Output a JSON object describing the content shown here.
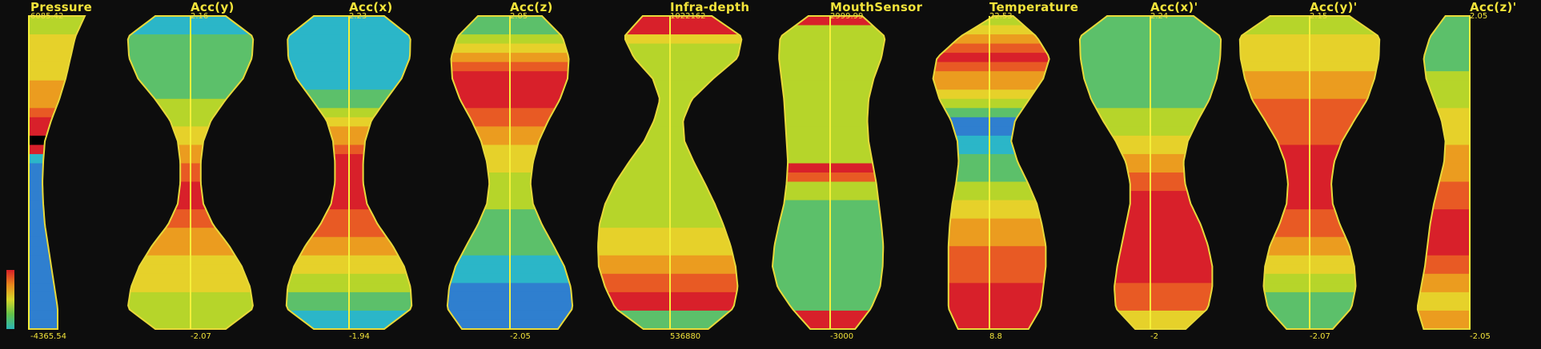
{
  "chart_data": {
    "type": "violin",
    "grid": false,
    "legend": "color scale bar at bottom-left",
    "colors": {
      "background": "#0d0d0d",
      "label": "#f2e33a",
      "outline": "#e8d93a",
      "median_line": "#f5f03a",
      "scale": [
        "#2f7fcf",
        "#2bb6c8",
        "#5cc06a",
        "#b6d52a",
        "#e6d12a",
        "#eb9c1f",
        "#e85a24",
        "#d8202a"
      ]
    },
    "series": [
      {
        "name": "Pressure",
        "max": "6085.42",
        "min": "-4365.54",
        "shape": "half",
        "half_widths": [
          70,
          58,
          52,
          46,
          38,
          28,
          20,
          18,
          17,
          18,
          20,
          24,
          28,
          32,
          36,
          36
        ],
        "stripes": [
          3,
          3,
          4,
          4,
          4,
          4,
          4,
          5,
          5,
          5,
          6,
          7,
          7,
          8,
          7,
          1,
          0,
          0,
          0,
          0,
          0,
          0,
          0,
          0,
          0,
          0,
          0,
          0,
          0,
          0,
          0,
          0,
          0,
          0
        ]
      },
      {
        "name": "Acc(y)",
        "max": "2.16",
        "min": "-2.07",
        "shape": "full",
        "half_widths": [
          0.55,
          0.98,
          0.96,
          0.82,
          0.55,
          0.32,
          0.2,
          0.16,
          0.16,
          0.2,
          0.35,
          0.6,
          0.8,
          0.93,
          0.98,
          0.55
        ],
        "stripes": [
          1,
          1,
          2,
          2,
          2,
          2,
          2,
          2,
          2,
          3,
          3,
          3,
          4,
          4,
          5,
          5,
          6,
          6,
          7,
          7,
          7,
          6,
          6,
          5,
          5,
          5,
          4,
          4,
          4,
          4,
          3,
          3,
          3,
          3
        ]
      },
      {
        "name": "Acc(x)",
        "max": "2.23",
        "min": "-1.94",
        "shape": "full",
        "half_widths": [
          0.55,
          0.96,
          0.95,
          0.82,
          0.58,
          0.35,
          0.25,
          0.22,
          0.22,
          0.28,
          0.45,
          0.68,
          0.86,
          0.96,
          0.98,
          0.55
        ],
        "stripes": [
          1,
          1,
          1,
          1,
          1,
          1,
          1,
          1,
          2,
          2,
          3,
          4,
          5,
          5,
          6,
          7,
          7,
          7,
          7,
          7,
          7,
          6,
          6,
          6,
          5,
          5,
          4,
          4,
          3,
          3,
          2,
          2,
          1,
          1
        ]
      },
      {
        "name": "Acc(z)",
        "max": "2.05",
        "min": "-2.05",
        "shape": "full",
        "half_widths": [
          0.5,
          0.82,
          0.92,
          0.9,
          0.78,
          0.6,
          0.45,
          0.36,
          0.32,
          0.36,
          0.5,
          0.68,
          0.85,
          0.95,
          0.98,
          0.75
        ],
        "stripes": [
          2,
          2,
          3,
          4,
          5,
          6,
          7,
          7,
          7,
          7,
          6,
          6,
          5,
          5,
          4,
          4,
          4,
          3,
          3,
          3,
          3,
          2,
          2,
          2,
          2,
          2,
          1,
          1,
          1,
          0,
          0,
          0,
          0,
          0
        ]
      },
      {
        "name": "Infra-depth",
        "max": "1022162",
        "min": "536880",
        "shape": "full",
        "half_widths": [
          0.48,
          0.82,
          0.72,
          0.42,
          0.22,
          0.2,
          0.28,
          0.45,
          0.62,
          0.76,
          0.86,
          0.92,
          0.95,
          0.92,
          0.82,
          0.45
        ],
        "center_shift": [
          0.1,
          0.18,
          0.22,
          0.18,
          0.08,
          -0.02,
          -0.08,
          -0.12,
          -0.14,
          -0.14,
          -0.12,
          -0.08,
          -0.04,
          0.02,
          0.06,
          0.08
        ],
        "stripes": [
          7,
          7,
          4,
          3,
          3,
          3,
          3,
          3,
          3,
          3,
          3,
          3,
          3,
          3,
          3,
          3,
          3,
          3,
          3,
          3,
          3,
          3,
          3,
          4,
          4,
          4,
          5,
          5,
          6,
          6,
          7,
          7,
          2,
          2
        ]
      },
      {
        "name": "MouthSensor",
        "max": "2999.99",
        "min": "-3000",
        "shape": "full",
        "half_widths": [
          0.42,
          0.82,
          0.8,
          0.72,
          0.66,
          0.64,
          0.64,
          0.66,
          0.7,
          0.74,
          0.8,
          0.85,
          0.86,
          0.8,
          0.62,
          0.35
        ],
        "center_shift": [
          0.08,
          0.04,
          0.0,
          -0.04,
          -0.06,
          -0.06,
          -0.04,
          0.0,
          0.02,
          0.02,
          0.0,
          -0.02,
          -0.04,
          -0.02,
          0.02,
          0.04
        ],
        "stripes": [
          7,
          3,
          3,
          3,
          3,
          3,
          3,
          3,
          3,
          3,
          3,
          3,
          3,
          3,
          3,
          3,
          7,
          6,
          3,
          3,
          2,
          2,
          2,
          2,
          2,
          2,
          2,
          2,
          2,
          2,
          2,
          2,
          7,
          7
        ]
      },
      {
        "name": "Temperature",
        "max": "22.53",
        "min": "8.8",
        "shape": "full",
        "half_widths": [
          0.15,
          0.6,
          0.88,
          0.86,
          0.7,
          0.5,
          0.42,
          0.46,
          0.56,
          0.66,
          0.72,
          0.76,
          0.76,
          0.74,
          0.72,
          0.55
        ],
        "center_shift": [
          0.22,
          0.14,
          0.06,
          -0.02,
          -0.08,
          -0.1,
          -0.08,
          -0.02,
          0.04,
          0.08,
          0.1,
          0.12,
          0.12,
          0.1,
          0.08,
          0.06
        ],
        "stripes": [
          3,
          4,
          5,
          6,
          7,
          6,
          5,
          5,
          4,
          3,
          2,
          0,
          0,
          1,
          1,
          2,
          2,
          2,
          3,
          3,
          4,
          4,
          5,
          5,
          5,
          6,
          6,
          6,
          6,
          7,
          7,
          7,
          7,
          7
        ]
      },
      {
        "name": "Acc(x)'",
        "max": "2.24",
        "min": "-2",
        "shape": "full",
        "half_widths": [
          0.6,
          0.98,
          0.97,
          0.92,
          0.82,
          0.66,
          0.5,
          0.4,
          0.38,
          0.42,
          0.52,
          0.6,
          0.66,
          0.68,
          0.64,
          0.35
        ],
        "center_shift": [
          0.0,
          0.0,
          0.0,
          0.0,
          0.0,
          0.0,
          0.02,
          0.06,
          0.1,
          0.14,
          0.18,
          0.2,
          0.2,
          0.18,
          0.16,
          0.14
        ],
        "stripes": [
          2,
          2,
          2,
          2,
          2,
          2,
          2,
          2,
          2,
          2,
          3,
          3,
          3,
          4,
          4,
          5,
          5,
          6,
          6,
          7,
          7,
          7,
          7,
          7,
          7,
          7,
          7,
          7,
          7,
          6,
          6,
          6,
          4,
          4
        ]
      },
      {
        "name": "Acc(y)'",
        "max": "2.15",
        "min": "-2.07",
        "shape": "full",
        "half_widths": [
          0.55,
          0.97,
          0.96,
          0.9,
          0.8,
          0.62,
          0.45,
          0.34,
          0.3,
          0.32,
          0.42,
          0.55,
          0.62,
          0.64,
          0.58,
          0.32
        ],
        "stripes": [
          3,
          3,
          4,
          4,
          4,
          4,
          5,
          5,
          5,
          6,
          6,
          6,
          6,
          6,
          7,
          7,
          7,
          7,
          7,
          7,
          7,
          6,
          6,
          6,
          5,
          5,
          4,
          4,
          3,
          3,
          2,
          2,
          2,
          2
        ]
      },
      {
        "name": "Acc(z)'",
        "max": "2.05",
        "min": "-2.05",
        "shape": "half",
        "half_widths": [
          0.38,
          0.62,
          0.72,
          0.68,
          0.56,
          0.44,
          0.38,
          0.4,
          0.48,
          0.56,
          0.62,
          0.66,
          0.7,
          0.76,
          0.82,
          0.72
        ],
        "stripes": [
          2,
          2,
          2,
          2,
          2,
          2,
          3,
          3,
          3,
          3,
          4,
          4,
          4,
          4,
          5,
          5,
          5,
          5,
          6,
          6,
          6,
          7,
          7,
          7,
          7,
          7,
          6,
          6,
          5,
          5,
          4,
          4,
          5,
          5
        ]
      }
    ]
  }
}
